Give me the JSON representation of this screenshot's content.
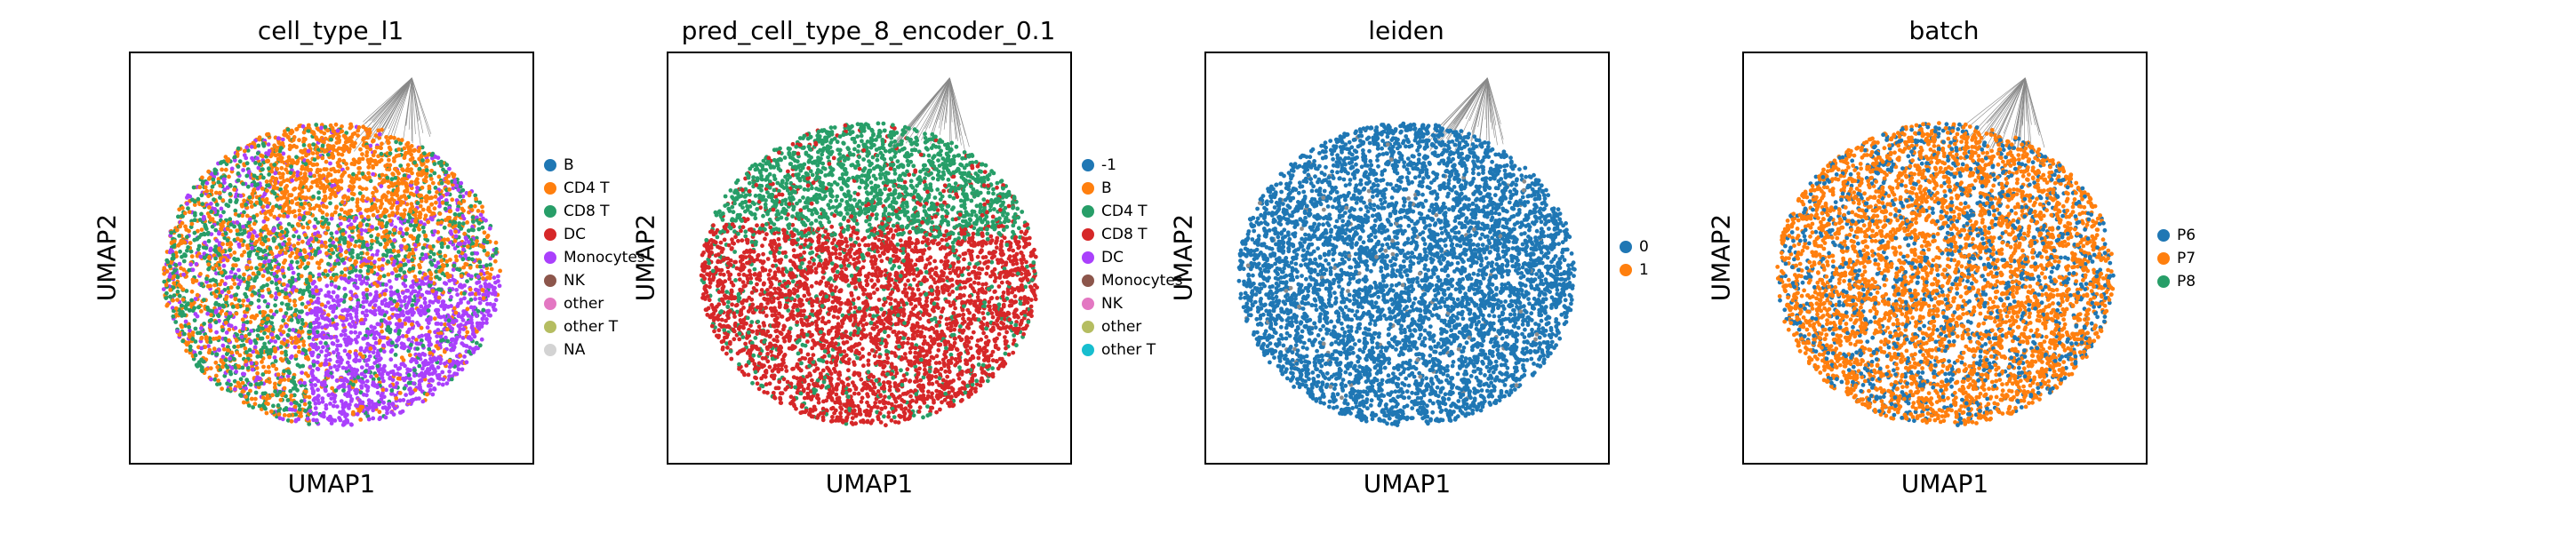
{
  "chart_data": [
    {
      "type": "scatter",
      "title": "cell_type_l1",
      "xlabel": "UMAP1",
      "ylabel": "UMAP2",
      "grid": false,
      "legend_position": "right",
      "legend": [
        {
          "label": "B",
          "color": "#1f77b4"
        },
        {
          "label": "CD4 T",
          "color": "#ff7f0e"
        },
        {
          "label": "CD8 T",
          "color": "#279e68"
        },
        {
          "label": "DC",
          "color": "#d62728"
        },
        {
          "label": "Monocytes",
          "color": "#aa40fc"
        },
        {
          "label": "NK",
          "color": "#8c564b"
        },
        {
          "label": "other",
          "color": "#e377c2"
        },
        {
          "label": "other T",
          "color": "#b5bd61"
        },
        {
          "label": "NA",
          "color": "#d3d3d3"
        }
      ]
    },
    {
      "type": "scatter",
      "title": "pred_cell_type_8_encoder_0.1",
      "xlabel": "UMAP1",
      "ylabel": "UMAP2",
      "grid": false,
      "legend_position": "right",
      "legend": [
        {
          "label": "-1",
          "color": "#1f77b4"
        },
        {
          "label": "B",
          "color": "#ff7f0e"
        },
        {
          "label": "CD4 T",
          "color": "#279e68"
        },
        {
          "label": "CD8 T",
          "color": "#d62728"
        },
        {
          "label": "DC",
          "color": "#aa40fc"
        },
        {
          "label": "Monocytes",
          "color": "#8c564b"
        },
        {
          "label": "NK",
          "color": "#e377c2"
        },
        {
          "label": "other",
          "color": "#b5bd61"
        },
        {
          "label": "other T",
          "color": "#17becf"
        }
      ]
    },
    {
      "type": "scatter",
      "title": "leiden",
      "xlabel": "UMAP1",
      "ylabel": "UMAP2",
      "grid": false,
      "legend_position": "right",
      "legend": [
        {
          "label": "0",
          "color": "#1f77b4"
        },
        {
          "label": "1",
          "color": "#ff7f0e"
        }
      ]
    },
    {
      "type": "scatter",
      "title": "batch",
      "xlabel": "UMAP1",
      "ylabel": "UMAP2",
      "grid": false,
      "legend_position": "right",
      "legend": [
        {
          "label": "P6",
          "color": "#1f77b4"
        },
        {
          "label": "P7",
          "color": "#ff7f0e"
        },
        {
          "label": "P8",
          "color": "#279e68"
        }
      ]
    }
  ]
}
